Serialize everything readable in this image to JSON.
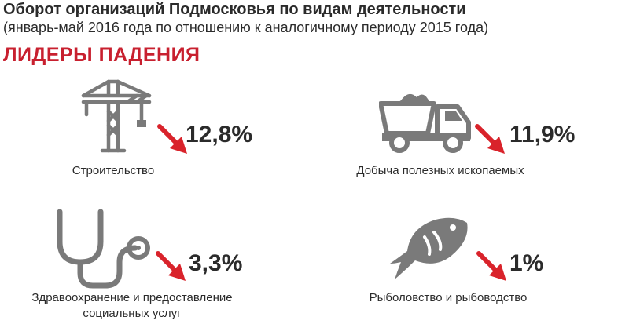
{
  "header": {
    "title": "Оборот организаций Подмосковья по видам деятельности",
    "subtitle": "(январь-май 2016 года по отношению к аналогичному периоду 2015 года)",
    "section": "ЛИДЕРЫ ПАДЕНИЯ"
  },
  "colors": {
    "accent": "#c8202f",
    "arrow": "#d9232b",
    "icon": "#7a7a7a",
    "text": "#2b2b2b"
  },
  "items": [
    {
      "icon": "crane-icon",
      "value": "12,8%",
      "label": "Строительство"
    },
    {
      "icon": "dump-truck-icon",
      "value": "11,9%",
      "label": "Добыча полезных ископаемых"
    },
    {
      "icon": "stethoscope-icon",
      "value": "3,3%",
      "label_lines": [
        "Здравоохранение и предоставление",
        "социальных услуг"
      ]
    },
    {
      "icon": "fish-icon",
      "value": "1%",
      "label": "Рыболовство и рыбоводство"
    }
  ]
}
